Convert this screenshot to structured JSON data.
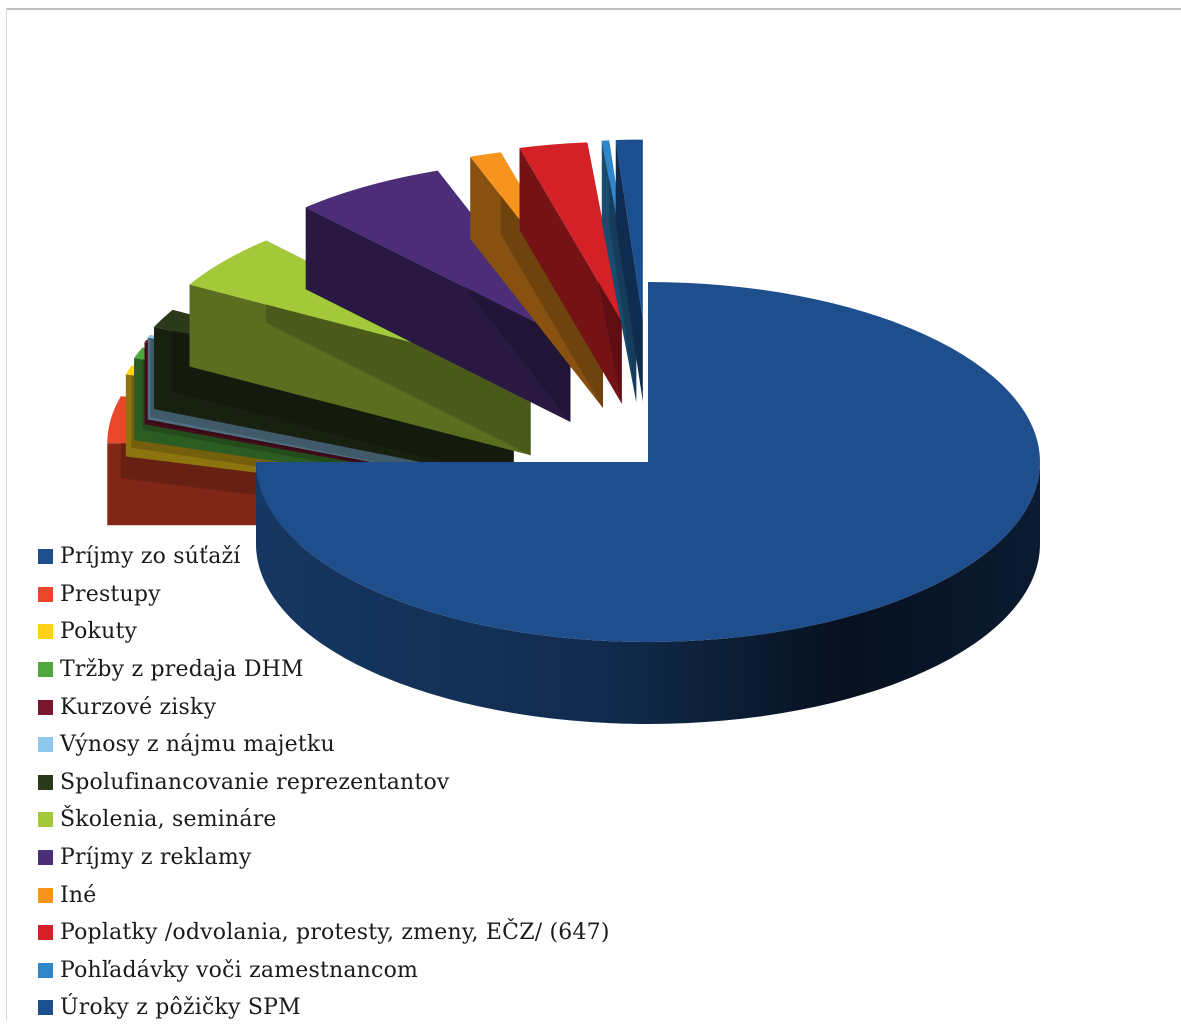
{
  "chart_data": {
    "type": "pie",
    "style": "3d-exploded",
    "legend_position": "bottom-left",
    "slices": [
      {
        "label": "Príjmy zo súťaží",
        "value": 75.0,
        "color": "#1f4e8c"
      },
      {
        "label": "Prestupy",
        "value": 4.2,
        "color": "#e8472a"
      },
      {
        "label": "Pokuty",
        "value": 0.8,
        "color": "#ffd21a"
      },
      {
        "label": "Tržby z predaja DHM",
        "value": 1.0,
        "color": "#4ea83d"
      },
      {
        "label": "Kurzové zisky",
        "value": 0.25,
        "color": "#7a1630"
      },
      {
        "label": "Výnosy z nájmu majetku",
        "value": 0.25,
        "color": "#8fc8ec"
      },
      {
        "label": "Spolufinancovanie reprezentantov",
        "value": 1.7,
        "color": "#2c3a1c"
      },
      {
        "label": "Školenia, semináre",
        "value": 5.0,
        "color": "#a3c83a"
      },
      {
        "label": "Príjmy z reklamy",
        "value": 6.3,
        "color": "#4b2d78"
      },
      {
        "label": "Iné",
        "value": 1.3,
        "color": "#f7941d"
      },
      {
        "label": "Poplatky /odvolania, protesty, zmeny, EČZ/ (647)",
        "value": 2.8,
        "color": "#d42027"
      },
      {
        "label": "Pohľadávky voči zamestnancom",
        "value": 0.3,
        "color": "#2f86c8"
      },
      {
        "label": "Úroky z pôžičky SPM",
        "value": 1.1,
        "color": "#1b4f8f"
      }
    ]
  }
}
